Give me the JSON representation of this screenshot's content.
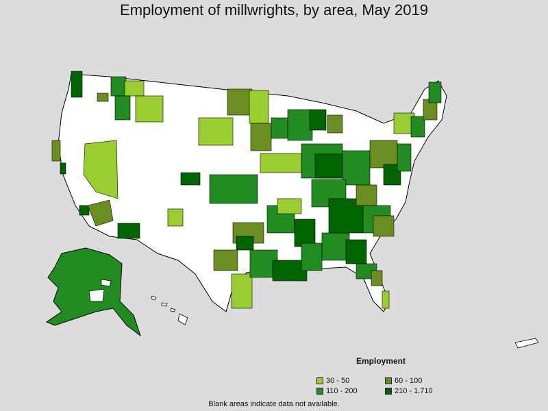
{
  "title": "Employment of millwrights, by area, May 2019",
  "legend": {
    "title": "Employment",
    "items": [
      {
        "label": "30 - 50",
        "color": "#9acd32"
      },
      {
        "label": "60 - 100",
        "color": "#6b8e23"
      },
      {
        "label": "110 - 200",
        "color": "#228b22"
      },
      {
        "label": "210 - 1,710",
        "color": "#006400"
      }
    ]
  },
  "note": "Blank areas indicate data not available.",
  "colors": {
    "background": "#dcdcdc",
    "no_data": "#ffffff",
    "outline": "#000000"
  }
}
